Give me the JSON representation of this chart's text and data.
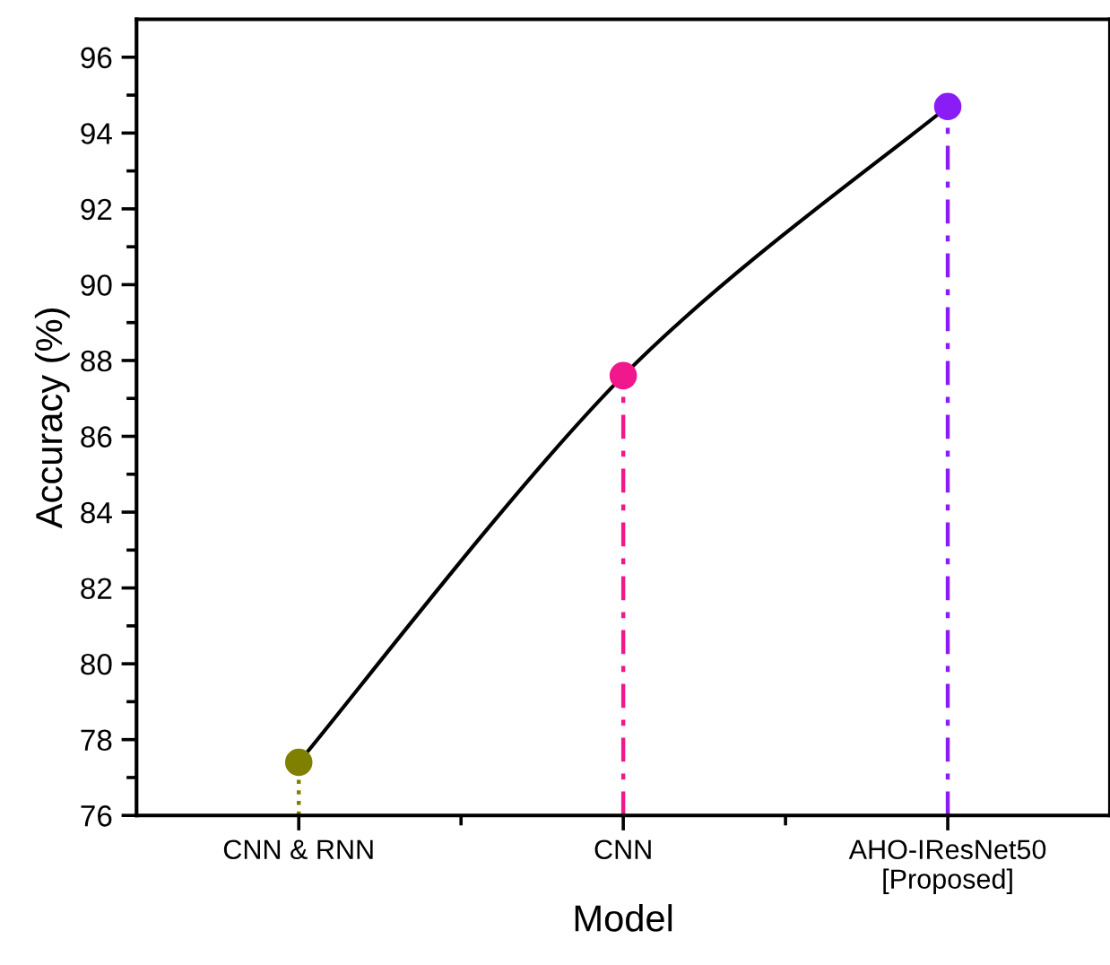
{
  "chart_data": {
    "type": "lollipop",
    "xlabel": "Model",
    "ylabel": "Accuracy (%)",
    "categories": [
      "CNN & RNN",
      "CNN",
      "AHO-IResNet50\n[Proposed]"
    ],
    "series": [
      {
        "type": "line",
        "color": "#000000",
        "marker": "none",
        "values": [
          77.4,
          87.6,
          94.7
        ]
      },
      {
        "colors": [
          "#808000",
          "#f0188c",
          "#8a1cf5"
        ],
        "values": [
          77.4,
          87.6,
          94.7
        ]
      }
    ],
    "ylim": [
      76,
      97
    ],
    "yticks": [
      76,
      78,
      80,
      82,
      84,
      86,
      88,
      90,
      92,
      94,
      96
    ],
    "grid": false,
    "marker": "circle",
    "line_style": "solid"
  }
}
